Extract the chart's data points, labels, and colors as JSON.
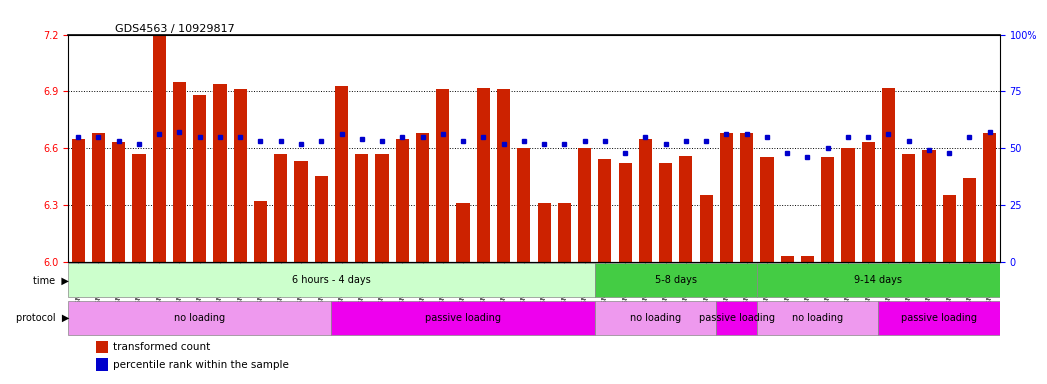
{
  "title": "GDS4563 / 10929817",
  "samples": [
    "GSM930471",
    "GSM930472",
    "GSM930473",
    "GSM930474",
    "GSM930475",
    "GSM930476",
    "GSM930477",
    "GSM930478",
    "GSM930479",
    "GSM930480",
    "GSM930481",
    "GSM930482",
    "GSM930483",
    "GSM930494",
    "GSM930495",
    "GSM930496",
    "GSM930497",
    "GSM930498",
    "GSM930499",
    "GSM930500",
    "GSM930501",
    "GSM930502",
    "GSM930503",
    "GSM930504",
    "GSM930505",
    "GSM930506",
    "GSM930484",
    "GSM930485",
    "GSM930486",
    "GSM930487",
    "GSM930507",
    "GSM930508",
    "GSM930509",
    "GSM930510",
    "GSM930488",
    "GSM930489",
    "GSM930490",
    "GSM930491",
    "GSM930492",
    "GSM930493",
    "GSM930511",
    "GSM930512",
    "GSM930513",
    "GSM930514",
    "GSM930515",
    "GSM930516"
  ],
  "red_values": [
    6.65,
    6.68,
    6.63,
    6.57,
    7.2,
    6.95,
    6.88,
    6.94,
    6.91,
    6.32,
    6.57,
    6.53,
    6.45,
    6.93,
    6.57,
    6.57,
    6.65,
    6.68,
    6.91,
    6.31,
    6.92,
    6.91,
    6.6,
    6.31,
    6.31,
    6.6,
    6.54,
    6.52,
    6.65,
    6.52,
    6.56,
    6.35,
    6.68,
    6.68,
    6.55,
    6.03,
    6.03,
    6.55,
    6.6,
    6.63,
    6.92,
    6.57,
    6.59,
    6.35,
    6.44,
    6.68
  ],
  "blue_values": [
    55,
    55,
    53,
    52,
    56,
    57,
    55,
    55,
    55,
    53,
    53,
    52,
    53,
    56,
    54,
    53,
    55,
    55,
    56,
    53,
    55,
    52,
    53,
    52,
    52,
    53,
    53,
    48,
    55,
    52,
    53,
    53,
    56,
    56,
    55,
    48,
    46,
    50,
    55,
    55,
    56,
    53,
    49,
    48,
    55,
    57
  ],
  "ylim_left": [
    6.0,
    7.2
  ],
  "ylim_right": [
    0,
    100
  ],
  "yticks_left": [
    6.0,
    6.3,
    6.6,
    6.9,
    7.2
  ],
  "yticks_right": [
    0,
    25,
    50,
    75,
    100
  ],
  "bar_color": "#cc2200",
  "marker_color": "#0000cc",
  "bar_bottom": 6.0,
  "time_bands": [
    {
      "label": "6 hours - 4 days",
      "start": 0,
      "end": 26,
      "color": "#ccffcc"
    },
    {
      "label": "5-8 days",
      "start": 26,
      "end": 34,
      "color": "#44cc44"
    },
    {
      "label": "9-14 days",
      "start": 34,
      "end": 46,
      "color": "#44cc44"
    }
  ],
  "protocol_bands": [
    {
      "label": "no loading",
      "start": 0,
      "end": 13,
      "color": "#ee99ee"
    },
    {
      "label": "passive loading",
      "start": 13,
      "end": 26,
      "color": "#ee00ee"
    },
    {
      "label": "no loading",
      "start": 26,
      "end": 32,
      "color": "#ee99ee"
    },
    {
      "label": "passive loading",
      "start": 32,
      "end": 34,
      "color": "#ee00ee"
    },
    {
      "label": "no loading",
      "start": 34,
      "end": 40,
      "color": "#ee99ee"
    },
    {
      "label": "passive loading",
      "start": 40,
      "end": 46,
      "color": "#ee00ee"
    }
  ],
  "legend_red": "transformed count",
  "legend_blue": "percentile rank within the sample",
  "background_color": "#ffffff",
  "fig_width": 10.47,
  "fig_height": 3.84
}
